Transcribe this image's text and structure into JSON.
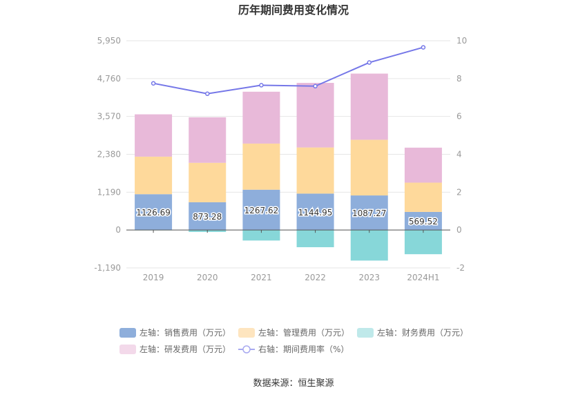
{
  "chart_data": {
    "type": "bar",
    "title": "历年期间费用变化情况",
    "categories": [
      "2019",
      "2020",
      "2021",
      "2022",
      "2023",
      "2024H1"
    ],
    "left_axis": {
      "ticks": [
        "5,950",
        "4,760",
        "3,570",
        "2,380",
        "1,190",
        "0",
        "-1,190"
      ],
      "min": -1190,
      "max": 5950
    },
    "right_axis": {
      "ticks": [
        "10",
        "8",
        "6",
        "4",
        "2",
        "0",
        "-2"
      ],
      "min": -2,
      "max": 10
    },
    "series": [
      {
        "name": "左轴：销售费用（万元）",
        "kind": "bar",
        "axis": "left",
        "color": "#8eaedb",
        "values": [
          1126.69,
          873.28,
          1267.62,
          1144.95,
          1087.27,
          569.52
        ],
        "labels": [
          "1126.69",
          "873.28",
          "1267.62",
          "1144.95",
          "1087.27",
          "569.52"
        ]
      },
      {
        "name": "左轴：管理费用（万元）",
        "kind": "bar",
        "axis": "left",
        "color": "#fed99b",
        "values": [
          1180,
          1240,
          1450,
          1450,
          1750,
          920
        ]
      },
      {
        "name": "左轴：财务费用（万元）",
        "kind": "bar",
        "axis": "left",
        "color": "#87d7d9",
        "values": [
          -10,
          -60,
          -330,
          -540,
          -960,
          -760
        ]
      },
      {
        "name": "左轴：研发费用（万元）",
        "kind": "bar",
        "axis": "left",
        "color": "#e8b9d9",
        "values": [
          1330,
          1430,
          1630,
          2030,
          2080,
          1100
        ]
      },
      {
        "name": "右轴：期间费用率（%）",
        "kind": "line",
        "axis": "right",
        "color": "#7577e8",
        "values": [
          7.75,
          7.2,
          7.65,
          7.6,
          8.85,
          9.65
        ]
      }
    ],
    "grid": true,
    "legend_position": "bottom"
  },
  "legend": {
    "items": [
      {
        "label": "左轴：销售费用（万元）",
        "color": "#8eaedb",
        "shape": "rect"
      },
      {
        "label": "左轴：管理费用（万元）",
        "color": "#fee5bf",
        "shape": "rect"
      },
      {
        "label": "左轴：财务费用（万元）",
        "color": "#bfe9ea",
        "shape": "rect"
      },
      {
        "label": "左轴：研发费用（万元）",
        "color": "#f3d9ea",
        "shape": "rect"
      },
      {
        "label": "右轴：期间费用率（%）",
        "color": "#a8a9f0",
        "shape": "line"
      }
    ]
  },
  "source": "数据来源：恒生聚源"
}
